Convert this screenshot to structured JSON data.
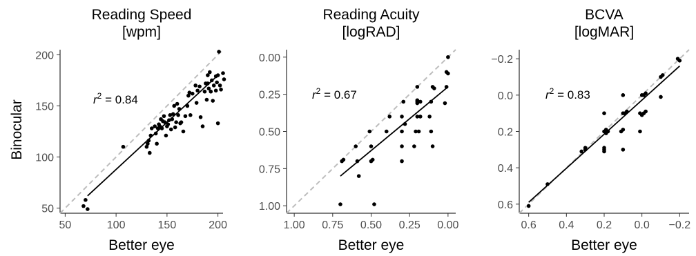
{
  "y_axis_label": "Binocular",
  "chart_data": [
    {
      "type": "scatter",
      "title": [
        "Reading Speed",
        "[wpm]"
      ],
      "xlabel": "Better eye",
      "xlim": [
        45,
        205
      ],
      "ylim": [
        45,
        205
      ],
      "reversed": false,
      "xticks": [
        50,
        100,
        150,
        200
      ],
      "yticks": [
        50,
        100,
        150,
        200
      ],
      "tick_labels_x": [
        "50",
        "100",
        "150",
        "200"
      ],
      "tick_labels_y": [
        "50",
        "100",
        "150",
        "200"
      ],
      "r2_label": "= 0.84",
      "r2_value": 0.84,
      "regression": [
        [
          72,
          62
        ],
        [
          200,
          180
        ]
      ],
      "identity_line": true,
      "points": [
        [
          68,
          52
        ],
        [
          70,
          58
        ],
        [
          72,
          49
        ],
        [
          107,
          110
        ],
        [
          130,
          110
        ],
        [
          131,
          113
        ],
        [
          132,
          116
        ],
        [
          133,
          104
        ],
        [
          134,
          121
        ],
        [
          135,
          128
        ],
        [
          138,
          130
        ],
        [
          139,
          123
        ],
        [
          140,
          113
        ],
        [
          141,
          128
        ],
        [
          142,
          132
        ],
        [
          143,
          130
        ],
        [
          144,
          137
        ],
        [
          145,
          128
        ],
        [
          146,
          135
        ],
        [
          147,
          140
        ],
        [
          148,
          134
        ],
        [
          149,
          121
        ],
        [
          150,
          130
        ],
        [
          151,
          132
        ],
        [
          152,
          136
        ],
        [
          153,
          141
        ],
        [
          154,
          127
        ],
        [
          155,
          137
        ],
        [
          156,
          142
        ],
        [
          157,
          150
        ],
        [
          158,
          129
        ],
        [
          159,
          134
        ],
        [
          160,
          152
        ],
        [
          161,
          141
        ],
        [
          162,
          147
        ],
        [
          163,
          133
        ],
        [
          164,
          134
        ],
        [
          166,
          125
        ],
        [
          168,
          140
        ],
        [
          170,
          150
        ],
        [
          171,
          160
        ],
        [
          172,
          163
        ],
        [
          173,
          141
        ],
        [
          175,
          162
        ],
        [
          178,
          170
        ],
        [
          179,
          153
        ],
        [
          180,
          165
        ],
        [
          182,
          169
        ],
        [
          183,
          139
        ],
        [
          185,
          130
        ],
        [
          187,
          164
        ],
        [
          188,
          172
        ],
        [
          189,
          156
        ],
        [
          190,
          180
        ],
        [
          190,
          172
        ],
        [
          191,
          167
        ],
        [
          192,
          183
        ],
        [
          193,
          164
        ],
        [
          194,
          175
        ],
        [
          195,
          155
        ],
        [
          196,
          170
        ],
        [
          198,
          165
        ],
        [
          198,
          179
        ],
        [
          199,
          173
        ],
        [
          200,
          133
        ],
        [
          200,
          180
        ],
        [
          201,
          203
        ],
        [
          202,
          170
        ],
        [
          203,
          166
        ],
        [
          205,
          182
        ],
        [
          206,
          176
        ]
      ]
    },
    {
      "type": "scatter",
      "title": [
        "Reading Acuity",
        "[logRAD]"
      ],
      "xlabel": "Better eye",
      "xlim": [
        1.05,
        -0.05
      ],
      "ylim": [
        1.05,
        -0.05
      ],
      "reversed": true,
      "xticks": [
        1.0,
        0.75,
        0.5,
        0.25,
        0.0
      ],
      "yticks": [
        1.0,
        0.75,
        0.5,
        0.25,
        0.0
      ],
      "tick_labels_x": [
        "1.00",
        "0.75",
        "0.50",
        "0.25",
        "0.00"
      ],
      "tick_labels_y": [
        "1.00",
        "0.75",
        "0.50",
        "0.25",
        "0.00"
      ],
      "r2_label": "= 0.67",
      "r2_value": 0.67,
      "regression": [
        [
          0.7,
          0.8
        ],
        [
          0.0,
          0.2
        ]
      ],
      "identity_line": true,
      "points": [
        [
          0.7,
          0.99
        ],
        [
          0.69,
          0.7
        ],
        [
          0.68,
          0.69
        ],
        [
          0.6,
          0.6
        ],
        [
          0.59,
          0.7
        ],
        [
          0.58,
          0.8
        ],
        [
          0.51,
          0.5
        ],
        [
          0.5,
          0.6
        ],
        [
          0.5,
          0.7
        ],
        [
          0.49,
          0.69
        ],
        [
          0.48,
          0.99
        ],
        [
          0.4,
          0.5
        ],
        [
          0.38,
          0.4
        ],
        [
          0.3,
          0.7
        ],
        [
          0.3,
          0.6
        ],
        [
          0.3,
          0.5
        ],
        [
          0.3,
          0.4
        ],
        [
          0.29,
          0.3
        ],
        [
          0.28,
          0.45
        ],
        [
          0.22,
          0.6
        ],
        [
          0.21,
          0.5
        ],
        [
          0.2,
          0.4
        ],
        [
          0.2,
          0.31
        ],
        [
          0.2,
          0.3
        ],
        [
          0.2,
          0.29
        ],
        [
          0.2,
          0.2
        ],
        [
          0.19,
          0.5
        ],
        [
          0.18,
          0.4
        ],
        [
          0.18,
          0.3
        ],
        [
          0.12,
          0.4
        ],
        [
          0.11,
          0.5
        ],
        [
          0.11,
          0.3
        ],
        [
          0.1,
          0.6
        ],
        [
          0.1,
          0.2
        ],
        [
          0.09,
          0.21
        ],
        [
          0.02,
          0.31
        ],
        [
          0.01,
          0.2
        ],
        [
          0.01,
          0.1
        ],
        [
          0.0,
          0.0
        ],
        [
          0.0,
          0.11
        ]
      ]
    },
    {
      "type": "scatter",
      "title": [
        "BCVA",
        "[logMAR]"
      ],
      "xlabel": "Better eye",
      "xlim": [
        0.65,
        -0.25
      ],
      "ylim": [
        0.65,
        -0.25
      ],
      "reversed": true,
      "xticks": [
        0.6,
        0.4,
        0.2,
        0.0,
        -0.2
      ],
      "yticks": [
        0.6,
        0.4,
        0.2,
        0.0,
        -0.2
      ],
      "tick_labels_x": [
        "0.6",
        "0.4",
        "0.2",
        "0.0",
        "−0.2"
      ],
      "tick_labels_y": [
        "0.6",
        "0.4",
        "0.2",
        "0.0",
        "−0.2"
      ],
      "r2_label": "= 0.83",
      "r2_value": 0.83,
      "regression": [
        [
          0.6,
          0.59
        ],
        [
          -0.2,
          -0.16
        ]
      ],
      "identity_line": true,
      "points": [
        [
          0.6,
          0.61
        ],
        [
          0.5,
          0.49
        ],
        [
          0.32,
          0.31
        ],
        [
          0.3,
          0.3
        ],
        [
          0.3,
          0.29
        ],
        [
          0.2,
          0.31
        ],
        [
          0.2,
          0.3
        ],
        [
          0.2,
          0.29
        ],
        [
          0.19,
          0.21
        ],
        [
          0.2,
          0.2
        ],
        [
          0.19,
          0.19
        ],
        [
          0.18,
          0.2
        ],
        [
          0.2,
          0.1
        ],
        [
          0.1,
          0.3
        ],
        [
          0.11,
          0.2
        ],
        [
          0.1,
          0.19
        ],
        [
          0.1,
          0.1
        ],
        [
          0.09,
          0.1
        ],
        [
          0.08,
          0.09
        ],
        [
          0.1,
          0.0
        ],
        [
          0.01,
          0.2
        ],
        [
          0.01,
          0.1
        ],
        [
          0.0,
          0.11
        ],
        [
          0.0,
          0.0
        ],
        [
          -0.01,
          0.0
        ],
        [
          -0.02,
          -0.01
        ],
        [
          -0.01,
          0.1
        ],
        [
          -0.02,
          0.09
        ],
        [
          -0.1,
          0.01
        ],
        [
          -0.1,
          -0.1
        ],
        [
          -0.11,
          -0.11
        ],
        [
          -0.19,
          -0.2
        ],
        [
          -0.2,
          -0.19
        ]
      ]
    }
  ]
}
